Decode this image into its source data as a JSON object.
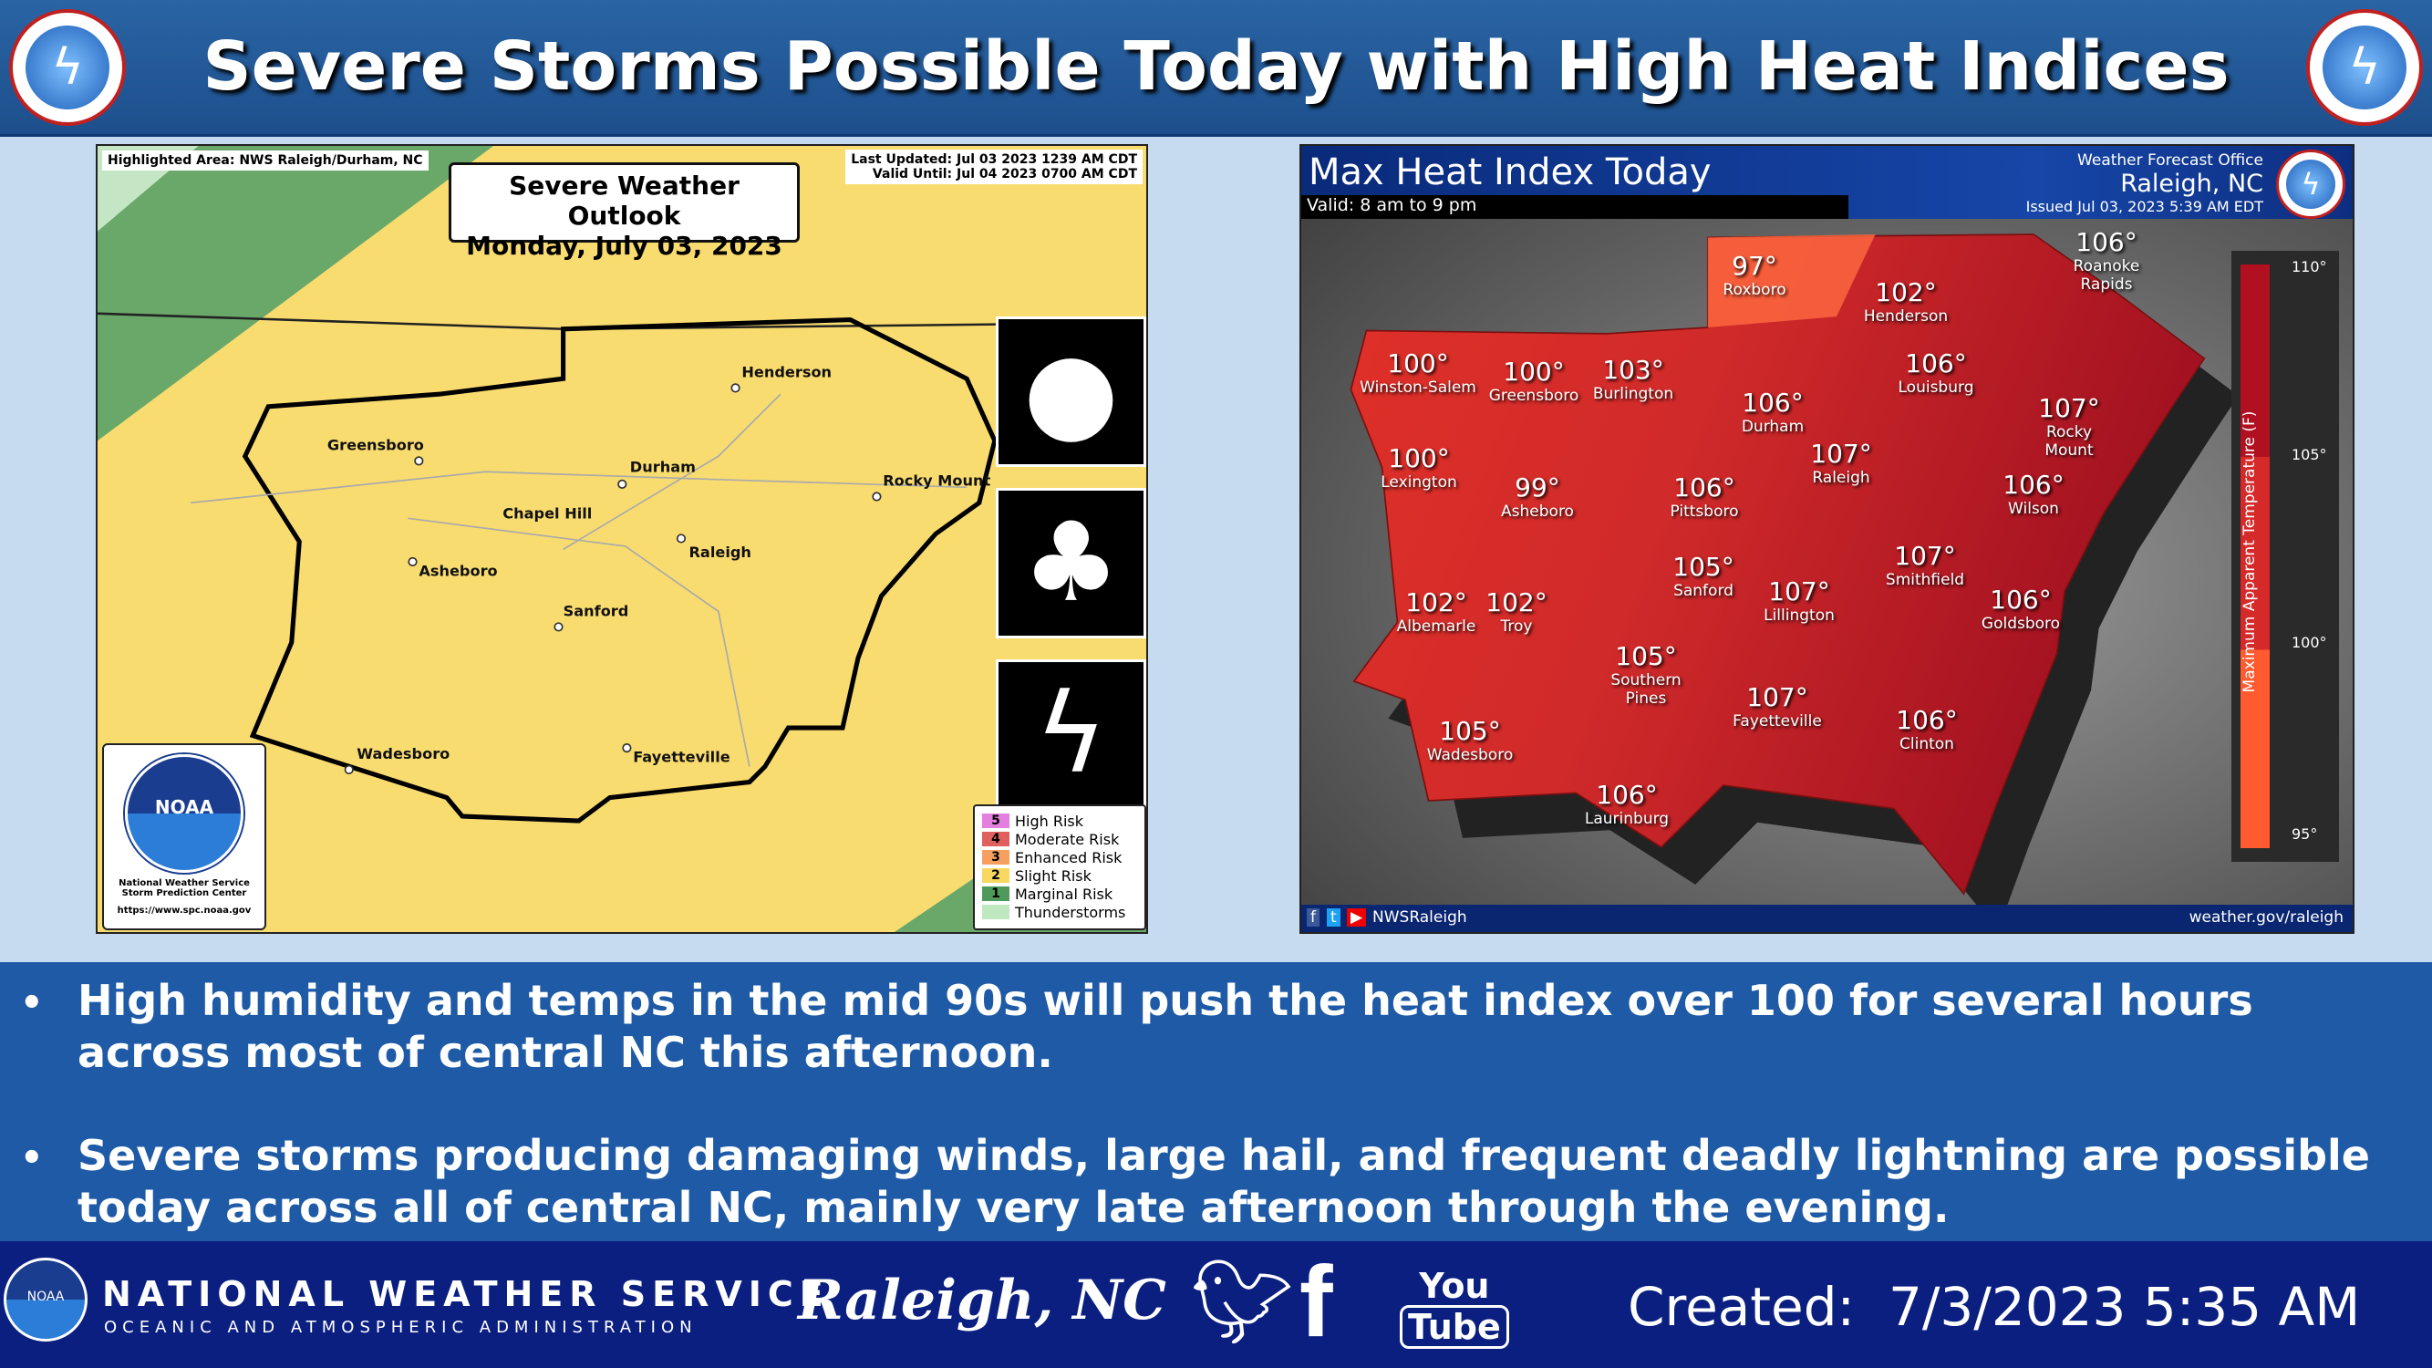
{
  "header": {
    "title": "Severe Storms Possible Today with High Heat Indices",
    "logo_text": "NATIONAL WEATHER SERVICE"
  },
  "outlook": {
    "highlighted_area": "Highlighted Area: NWS Raleigh/Durham, NC",
    "title": "Severe Weather Outlook",
    "date": "Monday, July 03, 2023",
    "last_updated": "Last Updated: Jul 03 2023 1239 AM CDT",
    "valid_until": "Valid Until: Jul 04 2023 0700 AM CDT",
    "cities": [
      "Henderson",
      "Greensboro",
      "Durham",
      "Rocky Mount",
      "Chapel Hill",
      "Raleigh",
      "Asheboro",
      "Sanford",
      "Wadesboro",
      "Fayetteville"
    ],
    "hazard_icons": [
      "hail-icon",
      "wind-icon",
      "lightning-icon"
    ],
    "legend": [
      {
        "num": "5",
        "label": "High Risk",
        "color": "#e47fe0"
      },
      {
        "num": "4",
        "label": "Moderate Risk",
        "color": "#e06060"
      },
      {
        "num": "3",
        "label": "Enhanced Risk",
        "color": "#f5a060"
      },
      {
        "num": "2",
        "label": "Slight Risk",
        "color": "#f8d860"
      },
      {
        "num": "1",
        "label": "Marginal Risk",
        "color": "#4f9a5a"
      },
      {
        "num": "",
        "label": "Thunderstorms",
        "color": "#c0e8c0"
      }
    ],
    "noaa": {
      "logo": "NOAA",
      "line1": "National Weather Service",
      "line2": "Storm Prediction Center",
      "url": "https://www.spc.noaa.gov"
    }
  },
  "heat": {
    "title": "Max Heat Index Today",
    "valid": "Valid: 8 am to 9 pm",
    "office_label": "Weather Forecast Office",
    "office": "Raleigh, NC",
    "issued": "Issued Jul 03, 2023 5:39 AM EDT",
    "cities": [
      {
        "name": "Roxboro",
        "value": "97°"
      },
      {
        "name": "Henderson",
        "value": "102°"
      },
      {
        "name": "Roanoke Rapids",
        "value": "106°"
      },
      {
        "name": "Winston-Salem",
        "value": "100°"
      },
      {
        "name": "Greensboro",
        "value": "100°"
      },
      {
        "name": "Burlington",
        "value": "103°"
      },
      {
        "name": "Durham",
        "value": "106°"
      },
      {
        "name": "Louisburg",
        "value": "106°"
      },
      {
        "name": "Rocky Mount",
        "value": "107°"
      },
      {
        "name": "Raleigh",
        "value": "107°"
      },
      {
        "name": "Lexington",
        "value": "100°"
      },
      {
        "name": "Asheboro",
        "value": "99°"
      },
      {
        "name": "Pittsboro",
        "value": "106°"
      },
      {
        "name": "Wilson",
        "value": "106°"
      },
      {
        "name": "Sanford",
        "value": "105°"
      },
      {
        "name": "Smithfield",
        "value": "107°"
      },
      {
        "name": "Albemarle",
        "value": "102°"
      },
      {
        "name": "Troy",
        "value": "102°"
      },
      {
        "name": "Lillington",
        "value": "107°"
      },
      {
        "name": "Goldsboro",
        "value": "106°"
      },
      {
        "name": "Southern Pines",
        "value": "105°"
      },
      {
        "name": "Fayetteville",
        "value": "107°"
      },
      {
        "name": "Clinton",
        "value": "106°"
      },
      {
        "name": "Wadesboro",
        "value": "105°"
      },
      {
        "name": "Laurinburg",
        "value": "106°"
      }
    ],
    "scale": {
      "label": "Maximum Apparent Temperature (F)",
      "ticks": [
        "110°",
        "105°",
        "100°",
        "95°"
      ],
      "colors": [
        "#b01020",
        "#d62a2a",
        "#ff5a30"
      ]
    },
    "social": "NWSRaleigh",
    "website": "weather.gov/raleigh"
  },
  "bullets": [
    "High humidity and temps in the mid 90s will push the heat index over 100 for several hours across most of central NC this afternoon.",
    "Severe storms producing damaging winds, large hail, and frequent deadly lightning are possible today across all of central NC, mainly very late afternoon through the evening."
  ],
  "footer": {
    "noaa": "NOAA",
    "nws": "NATIONAL WEATHER SERVICE",
    "noaa_full": "OCEANIC AND ATMOSPHERIC ADMINISTRATION",
    "office": "Raleigh, NC",
    "youtube_top": "You",
    "youtube_bottom": "Tube",
    "created_label": "Created:",
    "created": "7/3/2023 5:35 AM"
  }
}
